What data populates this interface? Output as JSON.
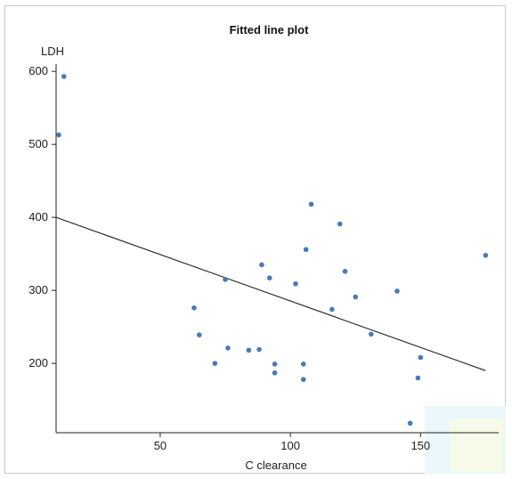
{
  "chart_data": {
    "type": "scatter",
    "title": "Fitted line plot",
    "xlabel": "C clearance",
    "ylabel": "LDH",
    "xlim": [
      10,
      180
    ],
    "ylim": [
      105,
      610
    ],
    "xticks": [
      50,
      100,
      150
    ],
    "yticks": [
      200,
      300,
      400,
      500,
      600
    ],
    "grid": false,
    "points": [
      {
        "x": 13,
        "y": 593
      },
      {
        "x": 11,
        "y": 513
      },
      {
        "x": 63,
        "y": 276
      },
      {
        "x": 65,
        "y": 239
      },
      {
        "x": 71,
        "y": 200
      },
      {
        "x": 75,
        "y": 315
      },
      {
        "x": 76,
        "y": 221
      },
      {
        "x": 84,
        "y": 218
      },
      {
        "x": 88,
        "y": 219
      },
      {
        "x": 89,
        "y": 335
      },
      {
        "x": 92,
        "y": 317
      },
      {
        "x": 94,
        "y": 199
      },
      {
        "x": 94,
        "y": 187
      },
      {
        "x": 102,
        "y": 309
      },
      {
        "x": 105,
        "y": 199
      },
      {
        "x": 105,
        "y": 178
      },
      {
        "x": 106,
        "y": 356
      },
      {
        "x": 108,
        "y": 418
      },
      {
        "x": 116,
        "y": 274
      },
      {
        "x": 119,
        "y": 391
      },
      {
        "x": 121,
        "y": 326
      },
      {
        "x": 125,
        "y": 291
      },
      {
        "x": 131,
        "y": 240
      },
      {
        "x": 141,
        "y": 299
      },
      {
        "x": 146,
        "y": 118
      },
      {
        "x": 149,
        "y": 180
      },
      {
        "x": 150,
        "y": 208
      },
      {
        "x": 175,
        "y": 348
      }
    ],
    "fit_line": {
      "x": [
        10,
        175
      ],
      "y": [
        400,
        190
      ]
    },
    "point_color": "#4a78b8",
    "line_color": "#222222"
  }
}
